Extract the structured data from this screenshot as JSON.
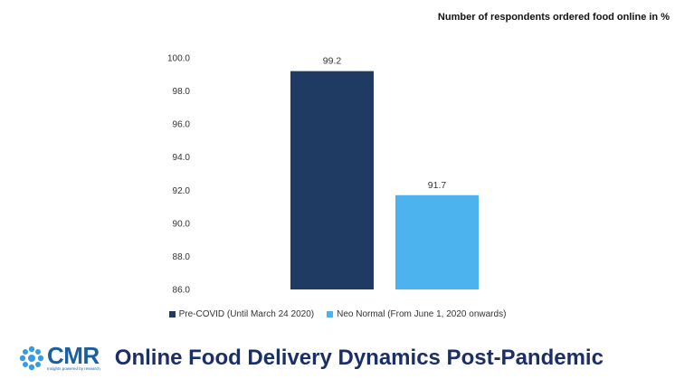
{
  "subtitle": "Number of respondents ordered food online in %",
  "colors": {
    "pre_covid": "#1f3a63",
    "neo_normal": "#4db3ee",
    "brand": "#1a5f9e",
    "headline": "#1b2f66"
  },
  "chart_data": {
    "type": "bar",
    "title": "",
    "categories": [
      ""
    ],
    "series": [
      {
        "name": "Pre-COVID (Until March 24 2020)",
        "values": [
          99.2
        ],
        "color": "#1f3a63"
      },
      {
        "name": "Neo Normal (From June 1, 2020 onwards)",
        "values": [
          91.7
        ],
        "color": "#4db3ee"
      }
    ],
    "ylim": [
      86.0,
      100.0
    ],
    "yticks": [
      "86.0",
      "88.0",
      "90.0",
      "92.0",
      "94.0",
      "96.0",
      "98.0",
      "100.0"
    ],
    "data_labels": [
      "99.2",
      "91.7"
    ],
    "grid": false,
    "legend_position": "bottom"
  },
  "footer": {
    "logo_text": "CMR",
    "logo_tagline": "Insights powered by research",
    "logo_icon": "cmr-logo-icon",
    "headline": "Online Food Delivery Dynamics Post-Pandemic"
  }
}
